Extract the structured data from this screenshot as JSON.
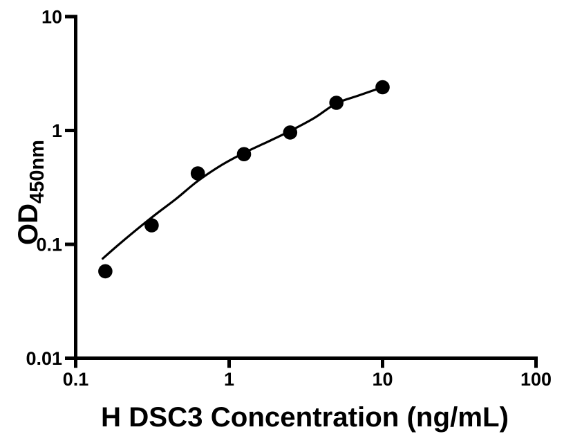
{
  "figure": {
    "background": "#ffffff",
    "ink_color": "#000000"
  },
  "chart_data": {
    "type": "scatter",
    "title": "",
    "xlabel": "H DSC3 Concentration (ng/mL)",
    "ylabel": "OD",
    "ylabel_subscript": "450nm",
    "x_scale": "log10",
    "y_scale": "log10",
    "xlim": [
      0.1,
      100
    ],
    "ylim": [
      0.01,
      10
    ],
    "grid": false,
    "legend": "none",
    "x_ticks": [
      {
        "value": 0.1,
        "label": "0.1"
      },
      {
        "value": 1,
        "label": "1"
      },
      {
        "value": 10,
        "label": "10"
      },
      {
        "value": 100,
        "label": "100"
      }
    ],
    "y_ticks": [
      {
        "value": 0.01,
        "label": "0.01"
      },
      {
        "value": 0.1,
        "label": "0.1"
      },
      {
        "value": 1,
        "label": "1"
      },
      {
        "value": 10,
        "label": "10"
      }
    ],
    "series": [
      {
        "name": "standard-points",
        "marker": "filled-circle",
        "color": "#000000",
        "x": [
          0.156,
          0.3125,
          0.625,
          1.25,
          2.5,
          5,
          10
        ],
        "y": [
          0.058,
          0.147,
          0.42,
          0.62,
          0.96,
          1.75,
          2.4
        ]
      }
    ],
    "fit_curve": {
      "name": "fitted-standard-curve",
      "color": "#000000",
      "x": [
        0.15,
        0.2,
        0.3125,
        0.45,
        0.625,
        0.9,
        1.25,
        1.8,
        2.5,
        3.6,
        5,
        7,
        10
      ],
      "y": [
        0.075,
        0.105,
        0.172,
        0.25,
        0.36,
        0.5,
        0.635,
        0.8,
        0.99,
        1.29,
        1.73,
        2.03,
        2.4
      ]
    }
  }
}
